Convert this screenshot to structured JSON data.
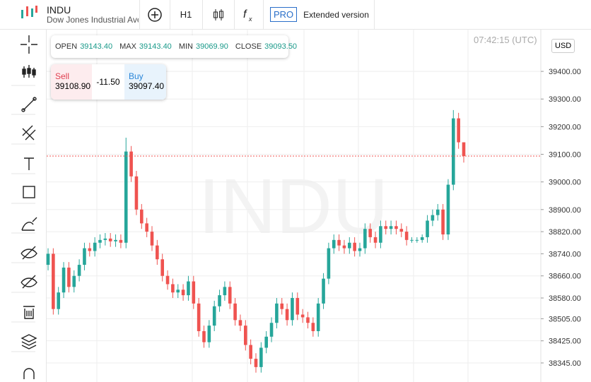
{
  "header": {
    "symbol": "INDU",
    "name": "Dow Jones Industrial Ave",
    "timeframe": "H1",
    "pro": "PRO",
    "extended": "Extended version",
    "time": "07:42:15 (UTC)",
    "currency": "USD"
  },
  "legend": {
    "open_label": "OPEN",
    "open": "39143.40",
    "max_label": "MAX",
    "max": "39143.40",
    "min_label": "MIN",
    "min": "39069.90",
    "close_label": "CLOSE",
    "close": "39093.50"
  },
  "trade": {
    "sell_label": "Sell",
    "sell": "39108.90",
    "spread": "-11.50",
    "buy_label": "Buy",
    "buy": "39097.40"
  },
  "chart_data": {
    "type": "candlestick",
    "watermark": "INDU",
    "up_color": "#26a69a",
    "down_color": "#ef5350",
    "grid": true,
    "ylim": [
      38276,
      39551
    ],
    "yticks": [
      {
        "value": 38345,
        "label": "38345.00"
      },
      {
        "value": 38425,
        "label": "38425.00"
      },
      {
        "value": 38505,
        "label": "38505.00"
      },
      {
        "value": 38580,
        "label": "38580.00"
      },
      {
        "value": 38660,
        "label": "38660.00"
      },
      {
        "value": 38740,
        "label": "38740.00"
      },
      {
        "value": 38820,
        "label": "38820.00"
      },
      {
        "value": 38900,
        "label": "38900.00"
      },
      {
        "value": 39000,
        "label": "39000.00"
      },
      {
        "value": 39100,
        "label": "39100.00"
      },
      {
        "value": 39200,
        "label": "39200.00"
      },
      {
        "value": 39300,
        "label": "39300.00"
      },
      {
        "value": 39400,
        "label": "39400.00"
      }
    ],
    "open": [
      38700,
      38740,
      38540,
      38600,
      38690,
      38620,
      38660,
      38700,
      38760,
      38750,
      38780,
      38790,
      38795,
      38785,
      38790,
      38780,
      39110,
      39020,
      38900,
      38850,
      38820,
      38770,
      38720,
      38660,
      38630,
      38600,
      38610,
      38590,
      38640,
      38560,
      38460,
      38420,
      38480,
      38550,
      38590,
      38620,
      38560,
      38500,
      38480,
      38410,
      38360,
      38330,
      38400,
      38440,
      38490,
      38560,
      38540,
      38500,
      38580,
      38520,
      38510,
      38490,
      38460,
      38560,
      38650,
      38760,
      38790,
      38770,
      38760,
      38780,
      38750,
      38760,
      38830,
      38800,
      38780,
      38840,
      38830,
      38840,
      38830,
      38820,
      38790,
      38790,
      38790,
      38800,
      38860,
      38880,
      38900,
      38810,
      38990,
      39230,
      39143.4
    ],
    "high": [
      38760,
      38760,
      38620,
      38710,
      38710,
      38680,
      38720,
      38780,
      38780,
      38800,
      38810,
      38815,
      38815,
      38810,
      38810,
      39160,
      39130,
      39040,
      38920,
      38870,
      38840,
      38790,
      38740,
      38680,
      38650,
      38630,
      38630,
      38660,
      38660,
      38580,
      38480,
      38500,
      38570,
      38610,
      38640,
      38640,
      38580,
      38520,
      38500,
      38430,
      38380,
      38420,
      38460,
      38510,
      38580,
      38580,
      38560,
      38600,
      38600,
      38540,
      38530,
      38510,
      38580,
      38670,
      38780,
      38810,
      38810,
      38790,
      38800,
      38800,
      38780,
      38850,
      38850,
      38820,
      38860,
      38860,
      38860,
      38860,
      38850,
      38840,
      38800,
      38800,
      38810,
      38880,
      38900,
      38920,
      38920,
      39010,
      39260,
      39250,
      39143.4
    ],
    "low": [
      38680,
      38520,
      38520,
      38580,
      38600,
      38600,
      38640,
      38680,
      38730,
      38730,
      38760,
      38770,
      38765,
      38765,
      38760,
      38760,
      39000,
      38880,
      38830,
      38800,
      38750,
      38700,
      38640,
      38610,
      38580,
      38580,
      38570,
      38570,
      38540,
      38440,
      38400,
      38400,
      38460,
      38530,
      38570,
      38540,
      38480,
      38460,
      38390,
      38340,
      38310,
      38310,
      38380,
      38420,
      38470,
      38520,
      38480,
      38480,
      38500,
      38490,
      38470,
      38440,
      38440,
      38540,
      38630,
      38740,
      38750,
      38740,
      38740,
      38730,
      38730,
      38740,
      38780,
      38760,
      38760,
      38810,
      38810,
      38810,
      38800,
      38770,
      38780,
      38780,
      38780,
      38780,
      38840,
      38860,
      38790,
      38790,
      38970,
      39120,
      39069.9
    ],
    "close": [
      38740,
      38540,
      38600,
      38690,
      38620,
      38660,
      38700,
      38760,
      38750,
      38780,
      38790,
      38795,
      38785,
      38790,
      38780,
      39110,
      39020,
      38900,
      38850,
      38820,
      38770,
      38720,
      38660,
      38630,
      38600,
      38610,
      38590,
      38640,
      38560,
      38460,
      38420,
      38480,
      38550,
      38590,
      38620,
      38560,
      38500,
      38480,
      38410,
      38360,
      38330,
      38400,
      38440,
      38490,
      38560,
      38540,
      38500,
      38580,
      38520,
      38510,
      38490,
      38460,
      38560,
      38650,
      38760,
      38790,
      38770,
      38760,
      38780,
      38750,
      38760,
      38830,
      38800,
      38780,
      38840,
      38830,
      38840,
      38830,
      38820,
      38790,
      38790,
      38790,
      38800,
      38860,
      38880,
      38900,
      38810,
      38990,
      39230,
      39143.4,
      39093.5
    ]
  }
}
